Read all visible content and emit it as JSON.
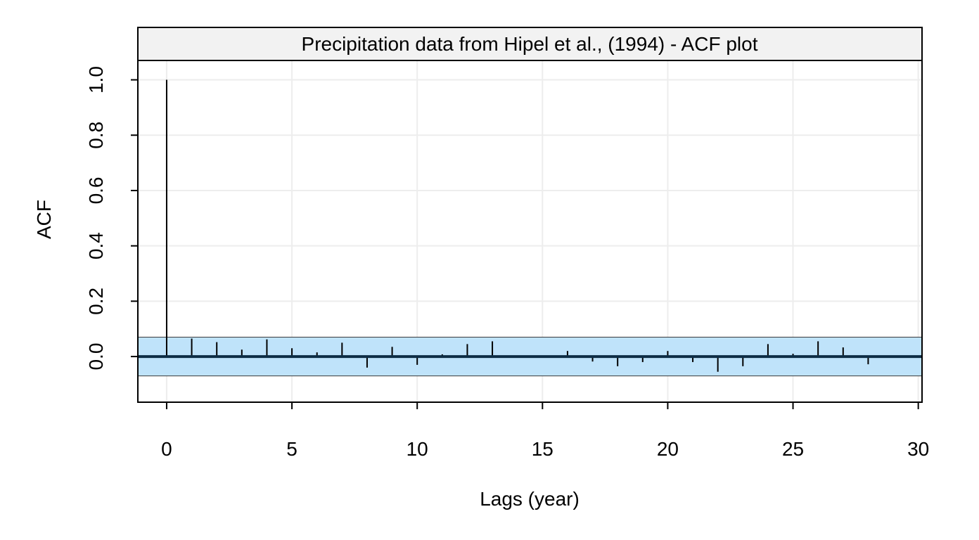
{
  "chart_data": {
    "type": "bar",
    "title": "Precipitation data from Hipel et al., (1994) - ACF plot",
    "xlabel": "Lags (year)",
    "ylabel": "ACF",
    "x": [
      0,
      1,
      2,
      3,
      4,
      5,
      6,
      7,
      8,
      9,
      10,
      11,
      12,
      13,
      14,
      15,
      16,
      17,
      18,
      19,
      20,
      21,
      22,
      23,
      24,
      25,
      26,
      27,
      28
    ],
    "values": [
      1.0,
      0.065,
      0.052,
      0.025,
      0.062,
      0.03,
      0.015,
      0.05,
      -0.04,
      0.035,
      -0.03,
      0.008,
      0.045,
      0.055,
      0.0,
      0.0,
      0.02,
      -0.018,
      -0.035,
      -0.02,
      0.02,
      -0.02,
      -0.055,
      -0.035,
      0.045,
      0.01,
      0.055,
      0.033,
      -0.028
    ],
    "confidence_band": {
      "lower": -0.07,
      "upper": 0.07
    },
    "xlim": [
      -1.15,
      30.15
    ],
    "ylim": [
      -0.165,
      1.07
    ],
    "x_ticks": [
      "0",
      "5",
      "10",
      "15",
      "20",
      "25",
      "30"
    ],
    "y_ticks": [
      "0.0",
      "0.2",
      "0.4",
      "0.6",
      "0.8",
      "1.0"
    ],
    "grid": true,
    "colors": {
      "band_fill": "#bfe3fa",
      "zero_line": "#0d2d45",
      "spike": "#000000",
      "grid": "#ededed",
      "strip_fill": "#f2f2f2"
    }
  }
}
